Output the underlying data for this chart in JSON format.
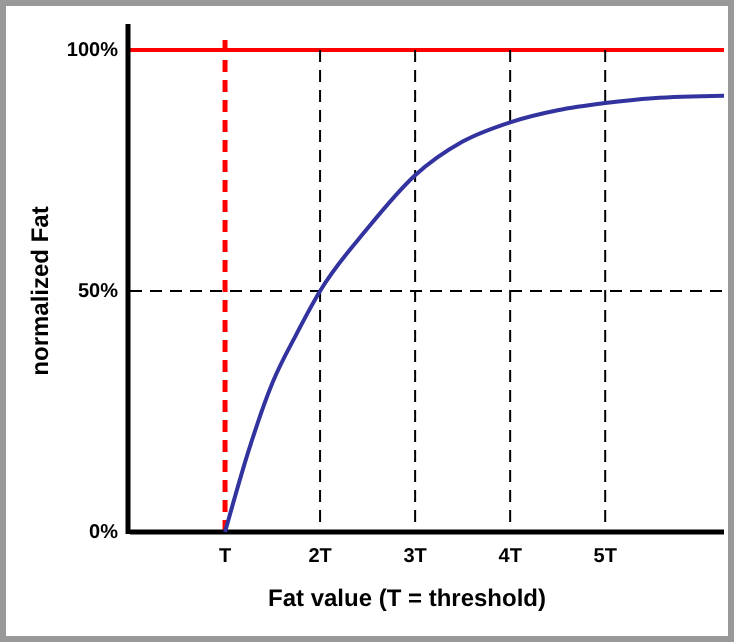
{
  "chart_data": {
    "type": "line",
    "xlabel": "Fat value (T = threshold)",
    "ylabel": "normalized Fat",
    "xlim": [
      0,
      6.25
    ],
    "ylim": [
      0,
      100
    ],
    "xticks": [
      {
        "value": 1,
        "label": "T"
      },
      {
        "value": 2,
        "label": "2T"
      },
      {
        "value": 3,
        "label": "3T"
      },
      {
        "value": 4,
        "label": "4T"
      },
      {
        "value": 5,
        "label": "5T"
      }
    ],
    "yticks": [
      {
        "value": 0,
        "label": "0%"
      },
      {
        "value": 50,
        "label": "50%"
      },
      {
        "value": 100,
        "label": "100%"
      }
    ],
    "series": [
      {
        "color": "#3333a0",
        "x": [
          1,
          1.25,
          1.5,
          1.75,
          2,
          2.5,
          3,
          3.5,
          4,
          4.5,
          5,
          5.5,
          6.25
        ],
        "values": [
          0,
          17,
          31,
          41,
          50,
          63,
          74,
          81,
          85,
          87.5,
          89,
          90,
          90.5
        ]
      }
    ],
    "ref_lines": [
      {
        "axis": "y",
        "value": 100,
        "color": "#ff0000",
        "line_style": "solid"
      },
      {
        "axis": "x",
        "value": 1,
        "color": "#ff0000",
        "line_style": "dashed"
      },
      {
        "axis": "x",
        "value": 2,
        "color": "#000000",
        "line_style": "dashed"
      },
      {
        "axis": "x",
        "value": 3,
        "color": "#000000",
        "line_style": "dashed"
      },
      {
        "axis": "x",
        "value": 4,
        "color": "#000000",
        "line_style": "dashed"
      },
      {
        "axis": "x",
        "value": 5,
        "color": "#000000",
        "line_style": "dashed"
      },
      {
        "axis": "y",
        "value": 50,
        "color": "#000000",
        "line_style": "dashed"
      }
    ],
    "line_style": "solid",
    "marker": "none"
  }
}
